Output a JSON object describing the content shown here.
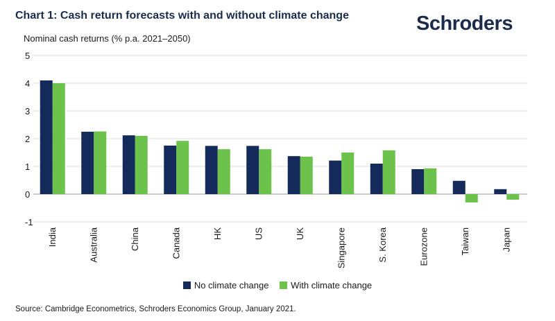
{
  "title": "Chart 1: Cash return forecasts with and without climate change",
  "logo_text": "Schroders",
  "source": "Source: Cambridge Econometrics, Schroders Economics Group, January 2021.",
  "colors": {
    "series1": "#132a5a",
    "series2": "#6cc24a",
    "grid": "#dcdcdc",
    "axis": "#999999"
  },
  "chart_data": {
    "type": "bar",
    "title": "Chart 1: Cash return forecasts with and without climate change",
    "ylabel": "Nominal cash returns (% p.a. 2021–2050)",
    "xlabel": "",
    "categories": [
      "India",
      "Australia",
      "China",
      "Canada",
      "HK",
      "US",
      "UK",
      "Singapore",
      "S. Korea",
      "Eurozone",
      "Taiwan",
      "Japan"
    ],
    "series": [
      {
        "name": "No climate change",
        "values": [
          4.1,
          2.25,
          2.12,
          1.75,
          1.74,
          1.74,
          1.37,
          1.21,
          1.1,
          0.9,
          0.48,
          0.18
        ]
      },
      {
        "name": "With climate change",
        "values": [
          4.0,
          2.26,
          2.1,
          1.92,
          1.62,
          1.62,
          1.35,
          1.5,
          1.58,
          0.93,
          -0.3,
          -0.2
        ]
      }
    ],
    "ylim": [
      -1,
      5
    ],
    "yticks": [
      5,
      4,
      3,
      2,
      1,
      0,
      -1
    ],
    "grid": true,
    "legend": "bottom"
  }
}
